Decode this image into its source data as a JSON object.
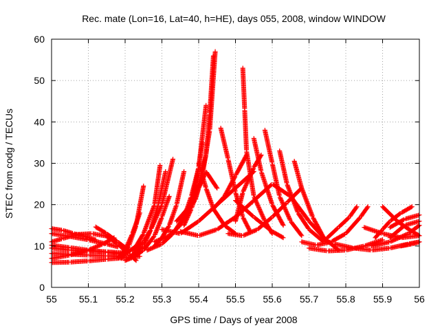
{
  "chart_data": {
    "type": "scatter",
    "title": "Rec. mate (Lon=16, Lat=40, h=HE), days 055, 2008, window WINDOW",
    "xlabel": "GPS time / Days of year 2008",
    "ylabel": "STEC from codg / TECUs",
    "xlim": [
      55,
      56
    ],
    "ylim": [
      0,
      60
    ],
    "x_ticks": [
      "55",
      "55.1",
      "55.2",
      "55.3",
      "55.4",
      "55.5",
      "55.6",
      "55.7",
      "55.8",
      "55.9",
      "56"
    ],
    "y_ticks": [
      "0",
      "10",
      "20",
      "30",
      "40",
      "50",
      "60"
    ],
    "grid": true,
    "marker": "+",
    "color": "#ff0000",
    "arcs": [
      {
        "x": [
          55.0,
          55.03,
          55.06,
          55.09,
          55.12
        ],
        "y": [
          14.2,
          13.8,
          13.0,
          12.4,
          11.5
        ]
      },
      {
        "x": [
          55.0,
          55.05,
          55.1,
          55.15,
          55.18
        ],
        "y": [
          13.0,
          12.3,
          11.5,
          10.5,
          9.8
        ]
      },
      {
        "x": [
          55.0,
          55.03,
          55.07,
          55.11,
          55.15
        ],
        "y": [
          11.0,
          11.8,
          12.8,
          13.0,
          12.4
        ]
      },
      {
        "x": [
          55.0,
          55.05,
          55.1,
          55.15,
          55.2
        ],
        "y": [
          10.2,
          9.6,
          9.0,
          8.5,
          8.0
        ]
      },
      {
        "x": [
          55.0,
          55.05,
          55.1,
          55.15,
          55.2
        ],
        "y": [
          9.5,
          9.0,
          8.8,
          8.6,
          8.3
        ]
      },
      {
        "x": [
          55.0,
          55.05,
          55.1,
          55.15,
          55.2
        ],
        "y": [
          8.2,
          8.0,
          7.8,
          7.6,
          7.5
        ]
      },
      {
        "x": [
          55.0,
          55.05,
          55.1,
          55.15,
          55.2,
          55.24
        ],
        "y": [
          6.0,
          6.1,
          6.4,
          6.8,
          7.2,
          7.5
        ]
      },
      {
        "x": [
          55.0,
          55.05,
          55.1,
          55.14,
          55.17
        ],
        "y": [
          7.0,
          7.8,
          9.0,
          10.5,
          12.0
        ]
      },
      {
        "x": [
          55.12,
          55.15,
          55.18,
          55.21
        ],
        "y": [
          14.6,
          13.0,
          11.0,
          9.0
        ]
      },
      {
        "x": [
          55.15,
          55.18,
          55.21,
          55.23
        ],
        "y": [
          12.3,
          10.5,
          8.0,
          6.5
        ]
      },
      {
        "x": [
          55.2,
          55.22,
          55.25,
          55.28,
          55.3,
          55.32
        ],
        "y": [
          6.5,
          7.2,
          9.0,
          12.5,
          17.0,
          22.0
        ]
      },
      {
        "x": [
          55.18,
          55.2,
          55.22,
          55.24
        ],
        "y": [
          7.0,
          9.0,
          13.0,
          18.0
        ]
      },
      {
        "x": [
          55.19,
          55.21,
          55.23,
          55.25
        ],
        "y": [
          7.0,
          10.0,
          15.0,
          24.5
        ]
      },
      {
        "x": [
          55.2,
          55.23,
          55.25,
          55.28,
          55.295
        ],
        "y": [
          8.0,
          10.0,
          13.0,
          20.0,
          29.5
        ]
      },
      {
        "x": [
          55.22,
          55.25,
          55.27,
          55.29,
          55.31
        ],
        "y": [
          8.0,
          10.0,
          14.0,
          20.0,
          28.0
        ]
      },
      {
        "x": [
          55.22,
          55.25,
          55.27,
          55.3,
          55.33
        ],
        "y": [
          9.0,
          11.0,
          14.0,
          20.0,
          31.0
        ]
      },
      {
        "x": [
          55.28,
          55.3,
          55.32,
          55.34,
          55.36
        ],
        "y": [
          10.0,
          12.0,
          15.0,
          20.0,
          28.0
        ]
      },
      {
        "x": [
          55.26,
          55.3,
          55.33,
          55.36,
          55.38,
          55.4,
          55.41
        ],
        "y": [
          9.0,
          10.5,
          13.0,
          17.0,
          22.0,
          29.0,
          35.0
        ]
      },
      {
        "x": [
          55.28,
          55.32,
          55.35,
          55.38,
          55.4,
          55.42
        ],
        "y": [
          11.0,
          12.5,
          15.0,
          20.0,
          29.0,
          44.0
        ]
      },
      {
        "x": [
          55.34,
          55.37,
          55.4,
          55.42,
          55.43,
          55.44
        ],
        "y": [
          16.0,
          19.0,
          25.0,
          32.0,
          42.0,
          56.0
        ]
      },
      {
        "x": [
          55.36,
          55.39,
          55.41,
          55.43,
          55.445
        ],
        "y": [
          18.0,
          21.0,
          27.0,
          38.0,
          57.0
        ]
      },
      {
        "x": [
          55.36,
          55.38,
          55.4,
          55.42,
          55.45
        ],
        "y": [
          15.0,
          19.0,
          24.0,
          28.0,
          24.0
        ]
      },
      {
        "x": [
          55.4,
          55.42,
          55.44,
          55.47,
          55.5
        ],
        "y": [
          30.0,
          24.0,
          19.0,
          15.0,
          13.0
        ]
      },
      {
        "x": [
          55.46,
          55.48,
          55.5,
          55.52,
          55.54
        ],
        "y": [
          38.5,
          31.0,
          23.0,
          17.0,
          13.5
        ]
      },
      {
        "x": [
          55.52,
          55.525,
          55.53,
          55.55,
          55.58,
          55.6
        ],
        "y": [
          53.0,
          43.0,
          33.0,
          22.0,
          16.0,
          13.0
        ]
      },
      {
        "x": [
          55.5,
          55.52,
          55.55,
          55.57
        ],
        "y": [
          16.0,
          23.0,
          29.0,
          32.0
        ]
      },
      {
        "x": [
          55.55,
          55.57,
          55.6,
          55.63
        ],
        "y": [
          36.0,
          28.0,
          20.0,
          15.0
        ]
      },
      {
        "x": [
          55.58,
          55.6,
          55.62,
          55.65,
          55.68
        ],
        "y": [
          38.0,
          30.0,
          22.0,
          16.0,
          12.5
        ]
      },
      {
        "x": [
          55.62,
          55.64,
          55.67,
          55.7,
          55.74
        ],
        "y": [
          33.0,
          25.0,
          18.0,
          14.0,
          11.0
        ]
      },
      {
        "x": [
          55.66,
          55.68,
          55.71,
          55.74,
          55.78
        ],
        "y": [
          30.5,
          24.0,
          17.0,
          12.0,
          9.0
        ]
      },
      {
        "x": [
          55.44,
          55.47,
          55.5,
          55.53
        ],
        "y": [
          19.0,
          22.0,
          27.0,
          32.0
        ]
      },
      {
        "x": [
          55.35,
          55.4,
          55.45,
          55.5,
          55.55,
          55.6,
          55.65,
          55.7,
          55.75
        ],
        "y": [
          13.5,
          12.5,
          14.0,
          17.0,
          21.0,
          25.0,
          22.0,
          16.0,
          11.0
        ]
      },
      {
        "x": [
          55.3,
          55.35,
          55.4,
          55.45,
          55.5,
          55.55
        ],
        "y": [
          14.0,
          13.0,
          16.0,
          20.0,
          24.0,
          28.0
        ]
      },
      {
        "x": [
          55.48,
          55.52,
          55.56,
          55.6,
          55.64,
          55.68
        ],
        "y": [
          13.0,
          12.5,
          14.0,
          17.0,
          20.5,
          24.0
        ]
      },
      {
        "x": [
          55.5,
          55.55,
          55.6,
          55.63
        ],
        "y": [
          21.0,
          17.0,
          13.5,
          12.0
        ]
      },
      {
        "x": [
          55.68,
          55.72,
          55.76,
          55.8,
          55.84,
          55.86
        ],
        "y": [
          11.0,
          10.2,
          11.0,
          13.0,
          17.0,
          19.5
        ]
      },
      {
        "x": [
          55.7,
          55.75,
          55.8,
          55.85,
          55.9
        ],
        "y": [
          9.5,
          8.8,
          9.0,
          10.0,
          11.5
        ]
      },
      {
        "x": [
          55.75,
          55.78,
          55.81,
          55.83
        ],
        "y": [
          12.0,
          14.5,
          17.0,
          19.5
        ]
      },
      {
        "x": [
          55.77,
          55.82,
          55.87,
          55.92,
          55.97,
          56.0
        ],
        "y": [
          10.5,
          9.5,
          9.0,
          9.5,
          10.5,
          11.0
        ]
      },
      {
        "x": [
          55.88,
          55.9,
          55.92,
          55.95,
          55.98
        ],
        "y": [
          12.0,
          14.0,
          16.0,
          18.0,
          19.5
        ]
      },
      {
        "x": [
          55.9,
          55.94,
          55.98,
          56.0
        ],
        "y": [
          19.5,
          16.0,
          13.5,
          12.5
        ]
      },
      {
        "x": [
          55.87,
          55.92,
          55.97,
          56.0
        ],
        "y": [
          10.0,
          11.0,
          13.0,
          15.0
        ]
      },
      {
        "x": [
          55.92,
          55.96,
          56.0
        ],
        "y": [
          14.5,
          16.5,
          17.5
        ]
      },
      {
        "x": [
          55.95,
          55.98,
          56.0
        ],
        "y": [
          10.0,
          10.5,
          11.0
        ]
      },
      {
        "x": [
          55.85,
          55.9,
          55.95,
          56.0
        ],
        "y": [
          14.5,
          13.0,
          12.0,
          12.5
        ]
      },
      {
        "x": [
          55.92,
          55.96,
          56.0
        ],
        "y": [
          12.0,
          15.0,
          16.0
        ]
      }
    ]
  }
}
